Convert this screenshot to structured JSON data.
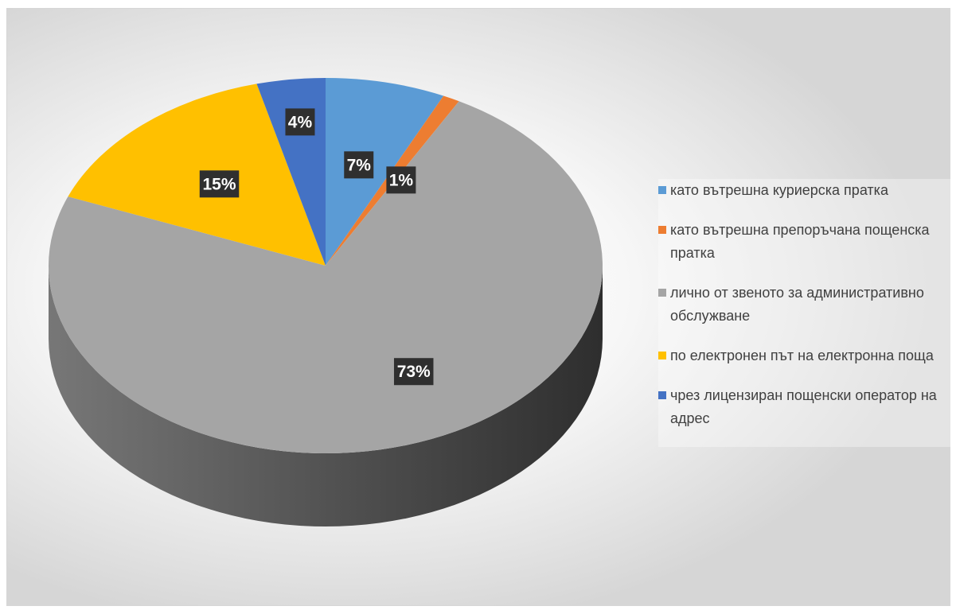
{
  "chart_data": {
    "type": "pie",
    "style": "3d",
    "title": "",
    "legend_position": "right",
    "start_angle_deg": 0,
    "direction": "clockwise",
    "slices": [
      {
        "label": "като вътрешна куриерска пратка",
        "value": 7,
        "display": "7%",
        "color": "#5B9BD5"
      },
      {
        "label": "като вътрешна препоръчана пощенска пратка",
        "value": 1,
        "display": "1%",
        "color": "#ED7D31"
      },
      {
        "label": "лично от звеното за административно обслужване",
        "value": 73,
        "display": "73%",
        "color": "#A5A5A5"
      },
      {
        "label": "по електронен път на електронна поща",
        "value": 15,
        "display": "15%",
        "color": "#FFC000"
      },
      {
        "label": "чрез лицензиран пощенски оператор на адрес",
        "value": 4,
        "display": "4%",
        "color": "#4472C4"
      }
    ]
  }
}
